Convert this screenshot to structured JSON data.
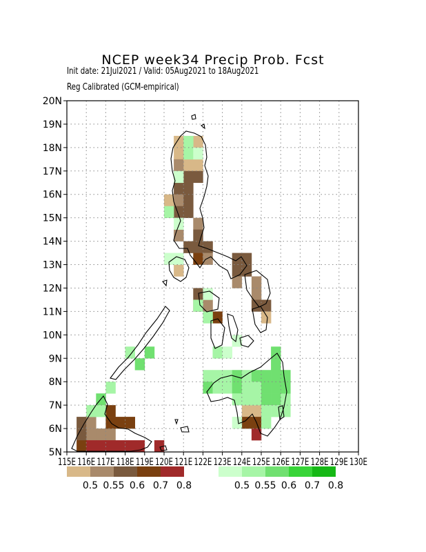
{
  "title": "NCEP week34 Precip Prob. Fcst",
  "subtitle_line1": "Init date: 21Jul2021 / Valid: 05Aug2021 to 18Aug2021",
  "subtitle_line2": "Reg Calibrated (GCM-empirical)",
  "lat_labels": [
    "20N",
    "19N",
    "18N",
    "17N",
    "16N",
    "15N",
    "14N",
    "13N",
    "12N",
    "11N",
    "10N",
    "9N",
    "8N",
    "7N",
    "6N",
    "5N"
  ],
  "lon_labels": [
    "115E",
    "116E",
    "117E",
    "118E",
    "119E",
    "120E",
    "121E",
    "122E",
    "123E",
    "124E",
    "125E",
    "126E",
    "127E",
    "128E",
    "129E",
    "130E"
  ],
  "legend_dry": {
    "colors": [
      "#d8b888",
      "#a98a6b",
      "#7a5a3e",
      "#7a4010",
      "#a02a2a"
    ],
    "labels": [
      "0.5",
      "0.55",
      "0.6",
      "0.7",
      "0.8"
    ]
  },
  "legend_wet": {
    "colors": [
      "#ccffcc",
      "#a6f5a6",
      "#70e070",
      "#38d438",
      "#16b816"
    ],
    "labels": [
      "0.5",
      "0.55",
      "0.6",
      "0.7",
      "0.8"
    ]
  },
  "map_data": {
    "lon_range": [
      115,
      130
    ],
    "lat_range": [
      5,
      20
    ],
    "grid_step_deg": 0.5,
    "dry_cells": [
      [
        120.5,
        18
      ],
      [
        121.5,
        18
      ],
      [
        120.5,
        17.5
      ],
      [
        120.5,
        17
      ],
      [
        121,
        17
      ],
      [
        121.5,
        17
      ],
      [
        120.5,
        16.5
      ],
      [
        121,
        16.5
      ],
      [
        121.5,
        16.5
      ],
      [
        120.5,
        16
      ],
      [
        121,
        16
      ],
      [
        120,
        15.5
      ],
      [
        120.5,
        15.5
      ],
      [
        121,
        15.5
      ],
      [
        120.5,
        15
      ],
      [
        121,
        15
      ],
      [
        121.5,
        14.5
      ],
      [
        121.5,
        14
      ],
      [
        120.5,
        14
      ],
      [
        121,
        13.5
      ],
      [
        121.5,
        13.5
      ],
      [
        122,
        13.5
      ],
      [
        121.5,
        13
      ],
      [
        122,
        13
      ],
      [
        123.5,
        13
      ],
      [
        124,
        13
      ],
      [
        123.5,
        12.5
      ],
      [
        124,
        12.5
      ],
      [
        120.5,
        12.5
      ],
      [
        123.5,
        12
      ],
      [
        124.5,
        12
      ],
      [
        121.5,
        11.5
      ],
      [
        124.5,
        11.5
      ],
      [
        121.5,
        11
      ],
      [
        122,
        11
      ],
      [
        124.5,
        11
      ],
      [
        125,
        11
      ],
      [
        122.5,
        10.5
      ],
      [
        125,
        10.5
      ],
      [
        124,
        6.5
      ],
      [
        124.5,
        6.5
      ],
      [
        124,
        6
      ],
      [
        124.5,
        6
      ],
      [
        124.5,
        5.5
      ],
      [
        115.5,
        6
      ],
      [
        116,
        6
      ],
      [
        116,
        5.5
      ],
      [
        116.5,
        5.5
      ],
      [
        117,
        5.5
      ],
      [
        115.5,
        5.5
      ],
      [
        117,
        6.5
      ],
      [
        117,
        6
      ],
      [
        117.5,
        6
      ],
      [
        118,
        6
      ],
      [
        115.5,
        5
      ],
      [
        116,
        5
      ],
      [
        116.5,
        5
      ],
      [
        117,
        5
      ],
      [
        117.5,
        5
      ],
      [
        118,
        5
      ],
      [
        118.5,
        5
      ],
      [
        119.5,
        5
      ]
    ],
    "dry_values": [
      0.5,
      0.5,
      0.5,
      0.55,
      0.5,
      0.5,
      0.55,
      0.6,
      0.6,
      0.6,
      0.6,
      0.5,
      0.55,
      0.6,
      0.6,
      0.6,
      0.55,
      0.6,
      0.55,
      0.6,
      0.6,
      0.6,
      0.7,
      0.55,
      0.6,
      0.6,
      0.6,
      0.6,
      0.5,
      0.55,
      0.55,
      0.6,
      0.55,
      0.55,
      0.55,
      0.6,
      0.6,
      0.7,
      0.5,
      0.5,
      0.5,
      0.7,
      0.7,
      0.8,
      0.6,
      0.55,
      0.55,
      0.55,
      0.55,
      0.6,
      0.7,
      0.7,
      0.7,
      0.7,
      0.7,
      0.8,
      0.8,
      0.8,
      0.8,
      0.8,
      0.8,
      0.8
    ],
    "wet_cells": [
      [
        121,
        18
      ],
      [
        121,
        17.5
      ],
      [
        121.5,
        17.5
      ],
      [
        120.5,
        16.5
      ],
      [
        120,
        15
      ],
      [
        120.5,
        14.5
      ],
      [
        120,
        13
      ],
      [
        120.5,
        13
      ],
      [
        121.5,
        11
      ],
      [
        122,
        11.5
      ],
      [
        122,
        10.5
      ],
      [
        123.5,
        9.5
      ],
      [
        122.5,
        9
      ],
      [
        123,
        9
      ],
      [
        119,
        9
      ],
      [
        118.5,
        8.5
      ],
      [
        118,
        9
      ],
      [
        122,
        8
      ],
      [
        122.5,
        8
      ],
      [
        123,
        8
      ],
      [
        123.5,
        8
      ],
      [
        124,
        8
      ],
      [
        124.5,
        8
      ],
      [
        125,
        8
      ],
      [
        125.5,
        8
      ],
      [
        122,
        7.5
      ],
      [
        122.5,
        7.5
      ],
      [
        123,
        7.5
      ],
      [
        123.5,
        7.5
      ],
      [
        124,
        7.5
      ],
      [
        124.5,
        7.5
      ],
      [
        125,
        7.5
      ],
      [
        125.5,
        7.5
      ],
      [
        123.5,
        7
      ],
      [
        124,
        7
      ],
      [
        124.5,
        7
      ],
      [
        125,
        7
      ],
      [
        125.5,
        7
      ],
      [
        126,
        7
      ],
      [
        125.5,
        8.5
      ],
      [
        125.5,
        9
      ],
      [
        126,
        8
      ],
      [
        126,
        7.5
      ],
      [
        125,
        6.5
      ],
      [
        125.5,
        6.5
      ],
      [
        126,
        6.5
      ],
      [
        125,
        6
      ],
      [
        123.5,
        6
      ],
      [
        116.5,
        7
      ],
      [
        117,
        7.5
      ],
      [
        116,
        6.5
      ],
      [
        116.5,
        6.5
      ]
    ],
    "wet_values": [
      0.55,
      0.55,
      0.5,
      0.5,
      0.55,
      0.5,
      0.5,
      0.5,
      0.55,
      0.5,
      0.55,
      0.5,
      0.55,
      0.5,
      0.6,
      0.6,
      0.55,
      0.55,
      0.55,
      0.55,
      0.6,
      0.55,
      0.6,
      0.6,
      0.6,
      0.6,
      0.55,
      0.55,
      0.6,
      0.55,
      0.55,
      0.6,
      0.6,
      0.55,
      0.55,
      0.55,
      0.6,
      0.6,
      0.55,
      0.6,
      0.6,
      0.6,
      0.6,
      0.55,
      0.55,
      0.55,
      0.55,
      0.5,
      0.6,
      0.55,
      0.55,
      0.55
    ]
  }
}
